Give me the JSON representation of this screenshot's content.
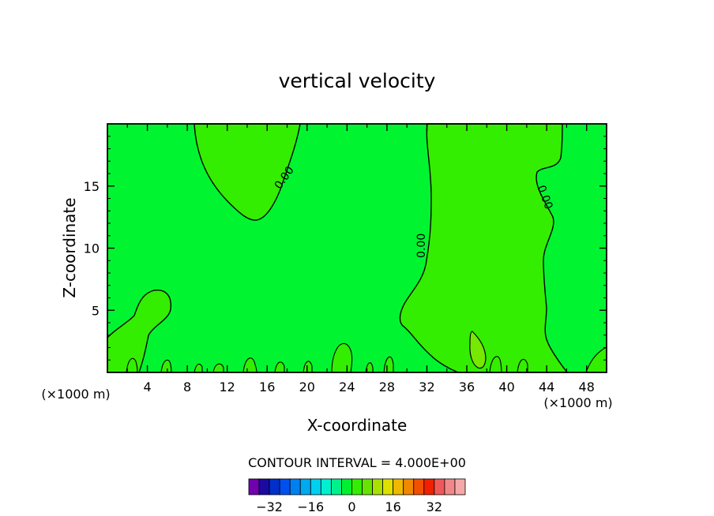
{
  "chart_data": {
    "type": "contour",
    "title": "vertical velocity",
    "xlabel": "X-coordinate",
    "ylabel": "Z-coordinate",
    "x_unit_left": "(×1000 m)",
    "x_unit_right": "(×1000 m)",
    "xlim": [
      0,
      50
    ],
    "ylim": [
      0,
      20
    ],
    "x_ticks": [
      4,
      8,
      12,
      16,
      20,
      24,
      28,
      32,
      36,
      40,
      44,
      48
    ],
    "y_ticks": [
      5,
      10,
      15
    ],
    "contour_labels": [
      {
        "text": "0.00",
        "x": 18,
        "y": 15.5
      },
      {
        "text": "0.00",
        "x": 31.8,
        "y": 10.2
      },
      {
        "text": "0.00",
        "x": 43.5,
        "y": 14.0
      }
    ],
    "colors": {
      "background_field": "#00f530",
      "positive_region": "#33ee00",
      "stronger_positive": "#77e800"
    },
    "colorbar": {
      "title": "CONTOUR INTERVAL = 4.000E+00",
      "tick_labels": [
        "−32",
        "−16",
        "0",
        "16",
        "32"
      ],
      "tick_values": [
        -32,
        -16,
        0,
        16,
        32
      ],
      "colors": [
        "#7000b0",
        "#1a0aa0",
        "#0030c8",
        "#0050f0",
        "#0080f0",
        "#00a8f0",
        "#00d0f0",
        "#00f0d0",
        "#00f08c",
        "#00f030",
        "#33ee00",
        "#66e400",
        "#aae000",
        "#e0e000",
        "#f0b800",
        "#f08800",
        "#f05000",
        "#f02000",
        "#f05858",
        "#f08888",
        "#f4a8a8"
      ]
    }
  }
}
